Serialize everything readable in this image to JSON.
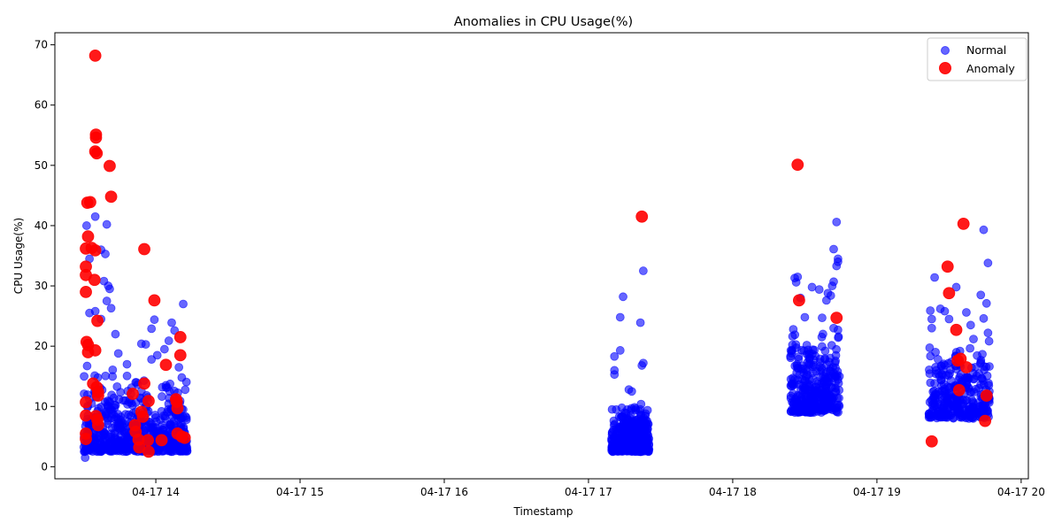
{
  "chart_data": {
    "type": "scatter",
    "title": "Anomalies in CPU Usage(%)",
    "xlabel": "Timestamp",
    "ylabel": "CPU Usage(%)",
    "x_range_hours": [
      13.3,
      20.05
    ],
    "ylim": [
      -2,
      72
    ],
    "x_ticks": [
      {
        "hour": 14,
        "label": "04-17 14"
      },
      {
        "hour": 15,
        "label": "04-17 15"
      },
      {
        "hour": 16,
        "label": "04-17 16"
      },
      {
        "hour": 17,
        "label": "04-17 17"
      },
      {
        "hour": 18,
        "label": "04-17 18"
      },
      {
        "hour": 19,
        "label": "04-17 19"
      },
      {
        "hour": 20,
        "label": "04-17 20"
      }
    ],
    "y_ticks": [
      0,
      10,
      20,
      30,
      40,
      50,
      60,
      70
    ],
    "grid": false,
    "legend_position": "top-right",
    "series": [
      {
        "name": "Normal",
        "color": "#0000ff",
        "clusters": [
          {
            "x_range": [
              13.5,
              14.22
            ],
            "y_range": [
              2.5,
              17
            ],
            "count": 560
          },
          {
            "x_range": [
              17.16,
              17.42
            ],
            "y_range": [
              2.5,
              11
            ],
            "count": 420
          },
          {
            "x_range": [
              18.4,
              18.74
            ],
            "y_range": [
              9,
              24
            ],
            "count": 330
          },
          {
            "x_range": [
              19.36,
              19.78
            ],
            "y_range": [
              8,
              23
            ],
            "count": 300
          }
        ],
        "points": [
          [
            13.51,
            1.5
          ],
          [
            13.52,
            40
          ],
          [
            13.54,
            34.5
          ],
          [
            13.58,
            41.5
          ],
          [
            13.62,
            36
          ],
          [
            13.65,
            35.3
          ],
          [
            13.66,
            40.2
          ],
          [
            13.64,
            30.8
          ],
          [
            13.67,
            30
          ],
          [
            13.68,
            29.5
          ],
          [
            13.66,
            27.5
          ],
          [
            13.69,
            26.3
          ],
          [
            13.58,
            25.8
          ],
          [
            13.54,
            25.5
          ],
          [
            13.62,
            24.5
          ],
          [
            13.72,
            22
          ],
          [
            13.74,
            18.8
          ],
          [
            13.8,
            17
          ],
          [
            13.86,
            14
          ],
          [
            13.9,
            20.4
          ],
          [
            13.93,
            20.3
          ],
          [
            13.97,
            22.9
          ],
          [
            13.99,
            24.4
          ],
          [
            13.97,
            17.8
          ],
          [
            14.01,
            18.5
          ],
          [
            14.06,
            19.5
          ],
          [
            14.09,
            20.9
          ],
          [
            14.11,
            23.9
          ],
          [
            14.13,
            22.6
          ],
          [
            14.16,
            16.5
          ],
          [
            14.19,
            27
          ],
          [
            14.07,
            13.5
          ],
          [
            14.18,
            14.8
          ],
          [
            17.18,
            18.3
          ],
          [
            17.18,
            16
          ],
          [
            17.18,
            15.3
          ],
          [
            17.22,
            19.3
          ],
          [
            17.22,
            24.8
          ],
          [
            17.24,
            28.2
          ],
          [
            17.36,
            23.9
          ],
          [
            17.37,
            16.8
          ],
          [
            17.38,
            17.2
          ],
          [
            17.38,
            32.5
          ],
          [
            17.28,
            12.8
          ],
          [
            17.3,
            12.5
          ],
          [
            18.42,
            22.8
          ],
          [
            18.43,
            31.3
          ],
          [
            18.45,
            31.5
          ],
          [
            18.44,
            30.6
          ],
          [
            18.47,
            28
          ],
          [
            18.5,
            24.8
          ],
          [
            18.55,
            29.8
          ],
          [
            18.6,
            29.4
          ],
          [
            18.62,
            24.7
          ],
          [
            18.65,
            27.6
          ],
          [
            18.66,
            28.8
          ],
          [
            18.68,
            28.4
          ],
          [
            18.69,
            30
          ],
          [
            18.7,
            30.7
          ],
          [
            18.7,
            36.1
          ],
          [
            18.72,
            33.3
          ],
          [
            18.73,
            34.5
          ],
          [
            18.73,
            34
          ],
          [
            18.72,
            40.6
          ],
          [
            18.7,
            23
          ],
          [
            18.74,
            15
          ],
          [
            19.37,
            25.9
          ],
          [
            19.38,
            24.5
          ],
          [
            19.38,
            23
          ],
          [
            19.4,
            31.4
          ],
          [
            19.44,
            26.2
          ],
          [
            19.47,
            25.8
          ],
          [
            19.5,
            24.5
          ],
          [
            19.55,
            29.8
          ],
          [
            19.62,
            25.6
          ],
          [
            19.65,
            23.5
          ],
          [
            19.72,
            28.5
          ],
          [
            19.74,
            24.6
          ],
          [
            19.74,
            39.3
          ],
          [
            19.77,
            33.8
          ],
          [
            19.76,
            27.1
          ],
          [
            19.77,
            22.2
          ]
        ]
      },
      {
        "name": "Anomaly",
        "color": "#ff0000",
        "points": [
          [
            13.58,
            68.2
          ],
          [
            13.585,
            55.1
          ],
          [
            13.585,
            54.6
          ],
          [
            13.58,
            52.3
          ],
          [
            13.59,
            52
          ],
          [
            13.68,
            49.9
          ],
          [
            13.69,
            44.8
          ],
          [
            13.525,
            43.8
          ],
          [
            13.545,
            43.9
          ],
          [
            13.53,
            38.2
          ],
          [
            13.515,
            36.2
          ],
          [
            13.555,
            36.3
          ],
          [
            13.58,
            35.9
          ],
          [
            13.515,
            33.2
          ],
          [
            13.515,
            31.8
          ],
          [
            13.575,
            31
          ],
          [
            13.515,
            29
          ],
          [
            13.52,
            20.7
          ],
          [
            13.53,
            20.2
          ],
          [
            13.53,
            19
          ],
          [
            13.58,
            19.3
          ],
          [
            13.595,
            24.2
          ],
          [
            13.565,
            13.8
          ],
          [
            13.59,
            13.2
          ],
          [
            13.6,
            12.4
          ],
          [
            13.6,
            11.8
          ],
          [
            13.515,
            10.7
          ],
          [
            13.515,
            8.5
          ],
          [
            13.585,
            8.4
          ],
          [
            13.595,
            7.8
          ],
          [
            13.6,
            6.9
          ],
          [
            13.515,
            5.5
          ],
          [
            13.515,
            4.6
          ],
          [
            13.84,
            12.1
          ],
          [
            13.92,
            36.1
          ],
          [
            13.99,
            27.6
          ],
          [
            13.92,
            13.8
          ],
          [
            13.95,
            10.9
          ],
          [
            13.9,
            9.1
          ],
          [
            13.91,
            8.3
          ],
          [
            13.855,
            6.9
          ],
          [
            13.86,
            5.8
          ],
          [
            13.88,
            4.5
          ],
          [
            13.885,
            3.2
          ],
          [
            13.945,
            4.4
          ],
          [
            13.95,
            2.5
          ],
          [
            14.04,
            4.4
          ],
          [
            14.07,
            16.9
          ],
          [
            14.14,
            11.2
          ],
          [
            14.145,
            10.8
          ],
          [
            14.15,
            9.7
          ],
          [
            14.17,
            21.5
          ],
          [
            14.17,
            18.5
          ],
          [
            14.15,
            5.5
          ],
          [
            14.18,
            5
          ],
          [
            14.2,
            4.8
          ],
          [
            17.37,
            41.5
          ],
          [
            18.45,
            50.1
          ],
          [
            18.46,
            27.6
          ],
          [
            18.72,
            24.7
          ],
          [
            19.38,
            4.2
          ],
          [
            19.49,
            33.2
          ],
          [
            19.5,
            28.8
          ],
          [
            19.55,
            22.7
          ],
          [
            19.56,
            17.6
          ],
          [
            19.58,
            17.9
          ],
          [
            19.62,
            16.5
          ],
          [
            19.57,
            12.7
          ],
          [
            19.6,
            40.3
          ],
          [
            19.76,
            11.8
          ],
          [
            19.75,
            7.6
          ]
        ]
      }
    ]
  }
}
